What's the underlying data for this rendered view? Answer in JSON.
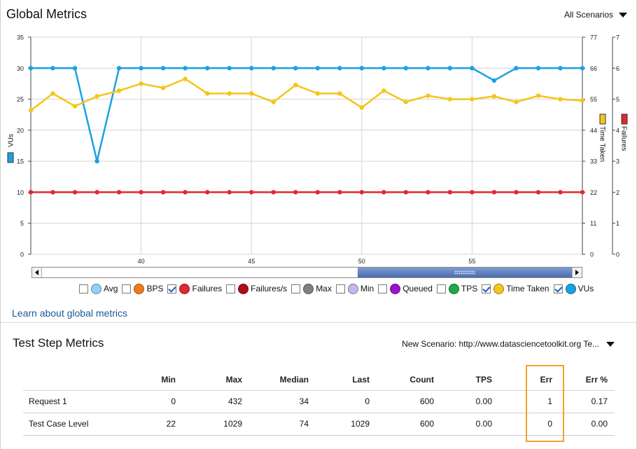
{
  "global": {
    "title": "Global Metrics",
    "scenario": "All Scenarios",
    "learn_link": "Learn about global metrics"
  },
  "chart_data": {
    "type": "line",
    "title": "",
    "x": [
      35,
      36,
      37,
      38,
      39,
      40,
      41,
      42,
      43,
      44,
      45,
      46,
      47,
      48,
      49,
      50,
      51,
      52,
      53,
      54,
      55,
      56,
      57,
      58,
      59,
      60
    ],
    "xlim": [
      35,
      60
    ],
    "x_ticks": [
      "40",
      "45",
      "50",
      "55"
    ],
    "y_left": {
      "label": "VUs",
      "ylim": [
        0,
        35
      ],
      "ticks": [
        "0",
        "5",
        "10",
        "15",
        "20",
        "25",
        "30",
        "35"
      ]
    },
    "y_mid": {
      "label": "Time Taken",
      "ylim": [
        0,
        77
      ],
      "ticks": [
        "0",
        "11",
        "22",
        "33",
        "44",
        "55",
        "66",
        "77"
      ]
    },
    "y_right": {
      "label": "Failures",
      "ylim": [
        0,
        7
      ],
      "ticks": [
        "0",
        "1",
        "2",
        "3",
        "4",
        "5",
        "6",
        "7"
      ]
    },
    "grid": true,
    "series": [
      {
        "name": "VUs",
        "axis": "left",
        "color": "#1ba1e2",
        "values": [
          30,
          30,
          30,
          15,
          30,
          30,
          30,
          30,
          30,
          30,
          30,
          30,
          30,
          30,
          30,
          30,
          30,
          30,
          30,
          30,
          30,
          28,
          30,
          30,
          30,
          30
        ]
      },
      {
        "name": "Time Taken",
        "axis": "mid",
        "color": "#f5c518",
        "values": [
          51,
          57,
          52.5,
          56,
          58,
          60.5,
          59,
          62.2,
          57,
          57,
          57,
          54,
          60,
          57,
          57,
          52,
          58,
          54,
          56.2,
          55,
          55,
          56,
          54,
          56.2,
          55,
          54.5
        ]
      },
      {
        "name": "Failures",
        "axis": "right",
        "color": "#e0282e",
        "values": [
          2,
          2,
          2,
          2,
          2,
          2,
          2,
          2,
          2,
          2,
          2,
          2,
          2,
          2,
          2,
          2,
          2,
          2,
          2,
          2,
          2,
          2,
          2,
          2,
          2,
          2
        ]
      }
    ]
  },
  "legend": [
    {
      "label": "Avg",
      "checked": false,
      "color": "#8fd3f0"
    },
    {
      "label": "BPS",
      "checked": false,
      "color": "#f07a1a"
    },
    {
      "label": "Failures",
      "checked": true,
      "color": "#e0282e"
    },
    {
      "label": "Failures/s",
      "checked": false,
      "color": "#b00d14"
    },
    {
      "label": "Max",
      "checked": false,
      "color": "#808080"
    },
    {
      "label": "Min",
      "checked": false,
      "color": "#c3b8e6"
    },
    {
      "label": "Queued",
      "checked": false,
      "color": "#9b14c8"
    },
    {
      "label": "TPS",
      "checked": false,
      "color": "#1fa84a"
    },
    {
      "label": "Time Taken",
      "checked": true,
      "color": "#f5c518"
    },
    {
      "label": "VUs",
      "checked": true,
      "color": "#1ba1e2"
    }
  ],
  "step": {
    "title": "Test Step Metrics",
    "scenario": "New Scenario: http://www.datasciencetoolkit.org Te...",
    "columns": [
      "",
      "Min",
      "Max",
      "Median",
      "Last",
      "Count",
      "TPS",
      "Err",
      "Err %"
    ],
    "rows": [
      [
        "Request 1",
        "0",
        "432",
        "34",
        "0",
        "600",
        "0.00",
        "1",
        "0.17"
      ],
      [
        "Test Case Level",
        "22",
        "1029",
        "74",
        "1029",
        "600",
        "0.00",
        "0",
        "0.00"
      ]
    ]
  }
}
